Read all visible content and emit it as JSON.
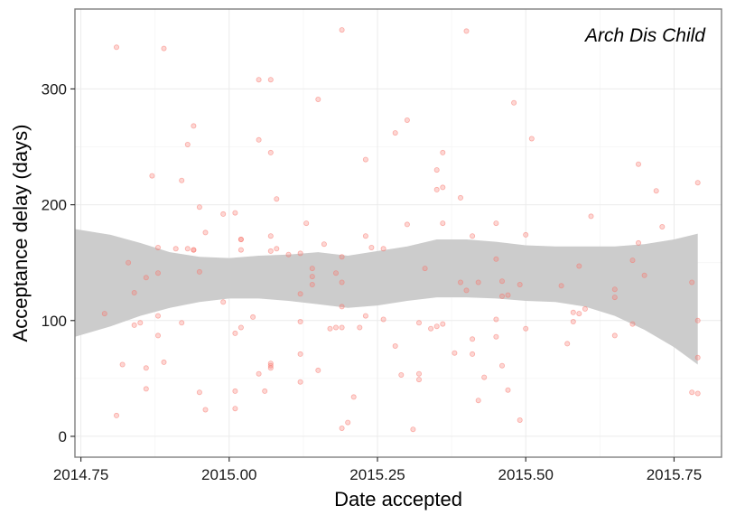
{
  "chart_data": {
    "type": "scatter",
    "title": "",
    "annotation": "Arch Dis Child",
    "xlabel": "Date accepted",
    "ylabel": "Acceptance delay (days)",
    "xlim": [
      2014.74,
      2015.83
    ],
    "ylim": [
      -18,
      369
    ],
    "x_ticks": [
      2014.75,
      2015.0,
      2015.25,
      2015.5,
      2015.75
    ],
    "x_tick_labels": [
      "2014.75",
      "2015.00",
      "2015.25",
      "2015.50",
      "2015.75"
    ],
    "y_ticks": [
      0,
      100,
      200,
      300
    ],
    "y_tick_labels": [
      "0",
      "100",
      "200",
      "300"
    ],
    "grid": true,
    "legend": "none",
    "colors": {
      "points": "#F8766D",
      "ribbon": "#CCCCCC",
      "panel_border": "#7F7F7F",
      "grid_major": "#EBEBEB",
      "grid_minor": "#F5F5F5"
    },
    "ribbon": {
      "x": [
        2014.74,
        2014.8,
        2014.85,
        2014.9,
        2014.95,
        2015.0,
        2015.05,
        2015.1,
        2015.15,
        2015.2,
        2015.25,
        2015.3,
        2015.35,
        2015.4,
        2015.45,
        2015.5,
        2015.55,
        2015.6,
        2015.65,
        2015.7,
        2015.75,
        2015.79
      ],
      "lower": [
        86,
        95,
        104,
        111,
        116,
        119,
        119,
        117,
        114,
        111,
        113,
        117,
        120,
        120,
        119,
        117,
        116,
        112,
        104,
        92,
        77,
        62
      ],
      "upper": [
        179,
        174,
        167,
        159,
        155,
        154,
        156,
        157,
        159,
        156,
        160,
        164,
        170,
        170,
        168,
        165,
        164,
        164,
        164,
        166,
        170,
        175
      ]
    },
    "series": [
      {
        "points": [
          [
            2014.79,
            106
          ],
          [
            2014.81,
            336
          ],
          [
            2014.81,
            18
          ],
          [
            2014.82,
            62
          ],
          [
            2014.83,
            150
          ],
          [
            2014.84,
            96
          ],
          [
            2014.84,
            124
          ],
          [
            2014.85,
            98
          ],
          [
            2014.86,
            137
          ],
          [
            2014.86,
            59
          ],
          [
            2014.86,
            41
          ],
          [
            2014.87,
            225
          ],
          [
            2014.88,
            104
          ],
          [
            2014.88,
            87
          ],
          [
            2014.89,
            335
          ],
          [
            2014.88,
            163
          ],
          [
            2014.88,
            141
          ],
          [
            2014.89,
            64
          ],
          [
            2014.91,
            162
          ],
          [
            2014.92,
            98
          ],
          [
            2014.92,
            221
          ],
          [
            2014.93,
            252
          ],
          [
            2014.94,
            268
          ],
          [
            2014.94,
            161
          ],
          [
            2014.93,
            162
          ],
          [
            2014.94,
            161
          ],
          [
            2014.95,
            142
          ],
          [
            2014.95,
            198
          ],
          [
            2014.96,
            176
          ],
          [
            2014.95,
            38
          ],
          [
            2014.96,
            23
          ],
          [
            2014.99,
            192
          ],
          [
            2014.99,
            116
          ],
          [
            2015.01,
            193
          ],
          [
            2015.01,
            89
          ],
          [
            2015.02,
            94
          ],
          [
            2015.01,
            24
          ],
          [
            2015.01,
            39
          ],
          [
            2015.02,
            170
          ],
          [
            2015.02,
            170
          ],
          [
            2015.02,
            161
          ],
          [
            2015.04,
            103
          ],
          [
            2015.05,
            308
          ],
          [
            2015.05,
            256
          ],
          [
            2015.05,
            54
          ],
          [
            2015.06,
            39
          ],
          [
            2015.07,
            308
          ],
          [
            2015.07,
            245
          ],
          [
            2015.07,
            173
          ],
          [
            2015.07,
            160
          ],
          [
            2015.07,
            63
          ],
          [
            2015.07,
            61
          ],
          [
            2015.07,
            59
          ],
          [
            2015.08,
            205
          ],
          [
            2015.08,
            162
          ],
          [
            2015.1,
            157
          ],
          [
            2015.12,
            158
          ],
          [
            2015.12,
            123
          ],
          [
            2015.12,
            99
          ],
          [
            2015.12,
            71
          ],
          [
            2015.12,
            47
          ],
          [
            2015.13,
            184
          ],
          [
            2015.14,
            145
          ],
          [
            2015.14,
            138
          ],
          [
            2015.14,
            131
          ],
          [
            2015.15,
            291
          ],
          [
            2015.15,
            57
          ],
          [
            2015.16,
            166
          ],
          [
            2015.17,
            93
          ],
          [
            2015.18,
            94
          ],
          [
            2015.19,
            351
          ],
          [
            2015.18,
            141
          ],
          [
            2015.19,
            133
          ],
          [
            2015.19,
            112
          ],
          [
            2015.19,
            94
          ],
          [
            2015.19,
            155
          ],
          [
            2015.19,
            7
          ],
          [
            2015.2,
            12
          ],
          [
            2015.21,
            34
          ],
          [
            2015.22,
            94
          ],
          [
            2015.23,
            239
          ],
          [
            2015.23,
            173
          ],
          [
            2015.23,
            104
          ],
          [
            2015.24,
            163
          ],
          [
            2015.26,
            162
          ],
          [
            2015.26,
            101
          ],
          [
            2015.28,
            262
          ],
          [
            2015.28,
            78
          ],
          [
            2015.29,
            53
          ],
          [
            2015.3,
            273
          ],
          [
            2015.3,
            183
          ],
          [
            2015.31,
            6
          ],
          [
            2015.32,
            98
          ],
          [
            2015.32,
            54
          ],
          [
            2015.32,
            49
          ],
          [
            2015.33,
            145
          ],
          [
            2015.34,
            93
          ],
          [
            2015.35,
            213
          ],
          [
            2015.35,
            95
          ],
          [
            2015.35,
            230
          ],
          [
            2015.36,
            245
          ],
          [
            2015.36,
            184
          ],
          [
            2015.36,
            215
          ],
          [
            2015.36,
            97
          ],
          [
            2015.38,
            72
          ],
          [
            2015.39,
            133
          ],
          [
            2015.39,
            206
          ],
          [
            2015.4,
            350
          ],
          [
            2015.4,
            126
          ],
          [
            2015.41,
            173
          ],
          [
            2015.41,
            84
          ],
          [
            2015.41,
            71
          ],
          [
            2015.42,
            133
          ],
          [
            2015.42,
            31
          ],
          [
            2015.43,
            51
          ],
          [
            2015.45,
            184
          ],
          [
            2015.45,
            153
          ],
          [
            2015.45,
            101
          ],
          [
            2015.45,
            86
          ],
          [
            2015.46,
            134
          ],
          [
            2015.46,
            121
          ],
          [
            2015.46,
            61
          ],
          [
            2015.47,
            40
          ],
          [
            2015.47,
            122
          ],
          [
            2015.48,
            288
          ],
          [
            2015.49,
            131
          ],
          [
            2015.49,
            14
          ],
          [
            2015.5,
            174
          ],
          [
            2015.5,
            93
          ],
          [
            2015.51,
            257
          ],
          [
            2015.56,
            130
          ],
          [
            2015.57,
            80
          ],
          [
            2015.58,
            107
          ],
          [
            2015.58,
            99
          ],
          [
            2015.59,
            147
          ],
          [
            2015.59,
            106
          ],
          [
            2015.6,
            110
          ],
          [
            2015.61,
            190
          ],
          [
            2015.65,
            87
          ],
          [
            2015.65,
            127
          ],
          [
            2015.65,
            120
          ],
          [
            2015.68,
            97
          ],
          [
            2015.68,
            152
          ],
          [
            2015.69,
            235
          ],
          [
            2015.69,
            167
          ],
          [
            2015.7,
            139
          ],
          [
            2015.72,
            212
          ],
          [
            2015.73,
            181
          ],
          [
            2015.78,
            38
          ],
          [
            2015.78,
            133
          ],
          [
            2015.79,
            100
          ],
          [
            2015.79,
            37
          ],
          [
            2015.79,
            68
          ],
          [
            2015.79,
            219
          ]
        ]
      }
    ]
  }
}
